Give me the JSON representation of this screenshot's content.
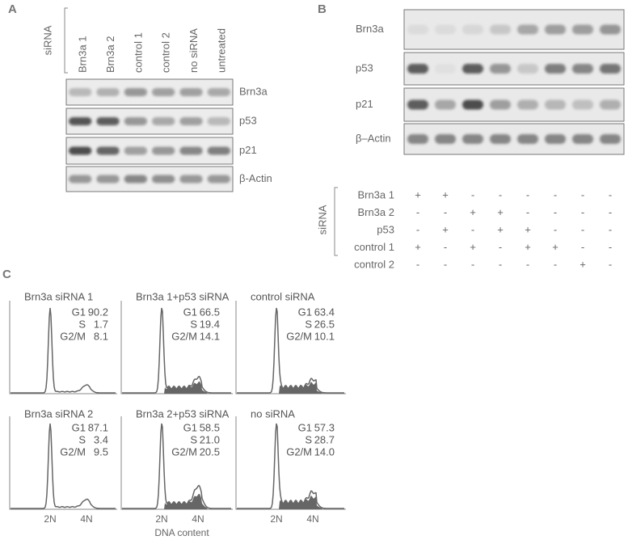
{
  "panel_a": {
    "label": "A",
    "group_label": "siRNA",
    "lanes": [
      "Brn3a 1",
      "Brn3a 2",
      "control 1",
      "control 2",
      "no siRNA",
      "untreated"
    ],
    "blots": [
      "Brn3a",
      "p53",
      "p21",
      "β-Actin"
    ]
  },
  "panel_b": {
    "label": "B",
    "blots": [
      "Brn3a",
      "p53",
      "p21",
      "β–Actin"
    ],
    "group_label": "siRNA",
    "rows": [
      {
        "name": "Brn3a 1",
        "signs": [
          "+",
          "+",
          "-",
          "-",
          "-",
          "-",
          "-",
          "-"
        ]
      },
      {
        "name": "Brn3a 2",
        "signs": [
          "-",
          "-",
          "+",
          "+",
          "-",
          "-",
          "-",
          "-"
        ]
      },
      {
        "name": "p53",
        "signs": [
          "-",
          "+",
          "-",
          "+",
          "+",
          "-",
          "-",
          "-"
        ]
      },
      {
        "name": "control 1",
        "signs": [
          "+",
          "-",
          "+",
          "-",
          "+",
          "+",
          "-",
          "-"
        ]
      },
      {
        "name": "control 2",
        "signs": [
          "-",
          "-",
          "-",
          "-",
          "-",
          "-",
          "+",
          "-"
        ]
      }
    ]
  },
  "panel_c": {
    "label": "C",
    "x_axis_label": "DNA content",
    "x_ticks": [
      "2N",
      "4N"
    ],
    "histograms": [
      {
        "title": "Brn3a siRNA 1",
        "stats": [
          {
            "phase": "G1",
            "value": "90.2"
          },
          {
            "phase": "S",
            "value": "1.7"
          },
          {
            "phase": "G2/M",
            "value": "8.1"
          }
        ]
      },
      {
        "title": "Brn3a 1+p53 siRNA",
        "stats": [
          {
            "phase": "G1",
            "value": "66.5"
          },
          {
            "phase": "S",
            "value": "19.4"
          },
          {
            "phase": "G2/M",
            "value": "14.1"
          }
        ]
      },
      {
        "title": "control siRNA",
        "stats": [
          {
            "phase": "G1",
            "value": "63.4"
          },
          {
            "phase": "S",
            "value": "26.5"
          },
          {
            "phase": "G2/M",
            "value": "10.1"
          }
        ]
      },
      {
        "title": "Brn3a siRNA 2",
        "stats": [
          {
            "phase": "G1",
            "value": "87.1"
          },
          {
            "phase": "S",
            "value": "3.4"
          },
          {
            "phase": "G2/M",
            "value": "9.5"
          }
        ]
      },
      {
        "title": "Brn3a 2+p53 siRNA",
        "stats": [
          {
            "phase": "G1",
            "value": "58.5"
          },
          {
            "phase": "S",
            "value": "21.0"
          },
          {
            "phase": "G2/M",
            "value": "20.5"
          }
        ]
      },
      {
        "title": "no siRNA",
        "stats": [
          {
            "phase": "G1",
            "value": "57.3"
          },
          {
            "phase": "S",
            "value": "28.7"
          },
          {
            "phase": "G2/M",
            "value": "14.0"
          }
        ]
      }
    ]
  }
}
